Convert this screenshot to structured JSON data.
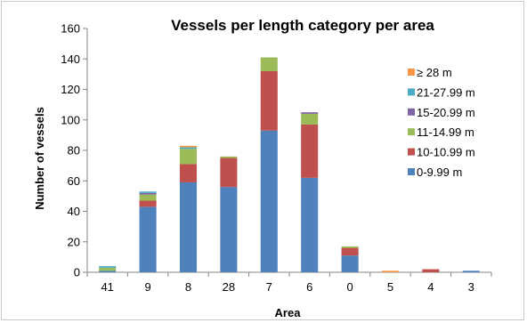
{
  "chart_data": {
    "type": "bar",
    "stacked": true,
    "title": "Vessels per length category per area",
    "xlabel": "Area",
    "ylabel": "Number of vessels",
    "ylim": [
      0,
      160
    ],
    "yticks": [
      0,
      20,
      40,
      60,
      80,
      100,
      120,
      140,
      160
    ],
    "grid": false,
    "legend_position": "right",
    "categories": [
      "41",
      "9",
      "8",
      "28",
      "7",
      "6",
      "0",
      "5",
      "4",
      "3"
    ],
    "series": [
      {
        "name": "0-9.99 m",
        "color": "#4f81bd",
        "values": [
          1,
          43,
          59,
          56,
          93,
          62,
          11,
          0,
          0,
          1
        ]
      },
      {
        "name": "10-10.99 m",
        "color": "#c0504d",
        "values": [
          0,
          4,
          12,
          19,
          39,
          35,
          5,
          0,
          2,
          0
        ]
      },
      {
        "name": "11-14.99 m",
        "color": "#9bbb59",
        "values": [
          2,
          4,
          10,
          1,
          9,
          7,
          1,
          0,
          0,
          0
        ]
      },
      {
        "name": "15-20.99 m",
        "color": "#8064a2",
        "values": [
          0,
          1,
          0,
          0,
          0,
          1,
          0,
          0,
          0,
          0
        ]
      },
      {
        "name": "21-27.99 m",
        "color": "#4bacc6",
        "values": [
          1,
          1,
          1,
          0,
          0,
          0,
          0,
          0,
          0,
          0
        ]
      },
      {
        "name": "≥ 28 m",
        "color": "#f79646",
        "values": [
          0,
          0,
          1,
          0,
          0,
          0,
          0,
          1,
          0,
          0
        ]
      }
    ]
  }
}
